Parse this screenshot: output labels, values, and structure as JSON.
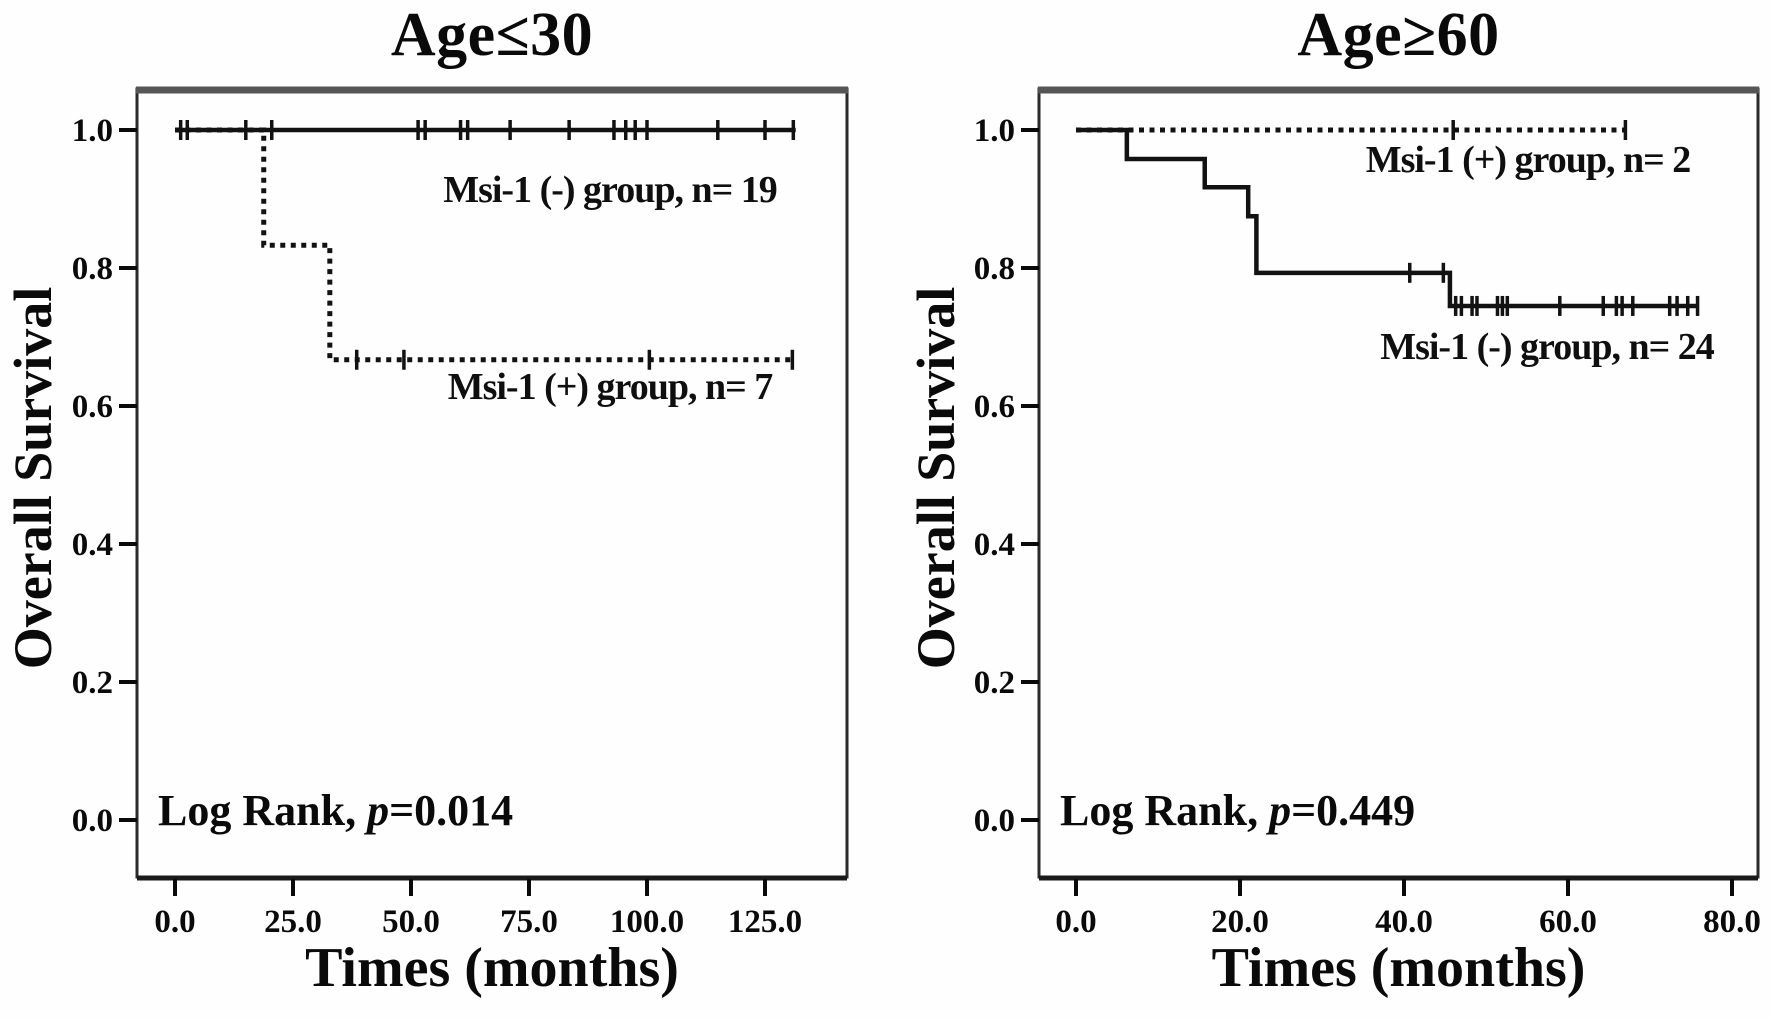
{
  "chart_data": [
    {
      "type": "line",
      "subtype": "kaplan-meier-step",
      "title": "Age≤30",
      "xlabel": "Times (months)",
      "ylabel": "Overall Survival",
      "xlim": [
        -8,
        142
      ],
      "ylim": [
        -0.08,
        1.06
      ],
      "grid": "off",
      "x_ticks": [
        0,
        25,
        50,
        75,
        100,
        125
      ],
      "x_tick_labels": [
        "0.0",
        "25.0",
        "50.0",
        "75.0",
        "100.0",
        "125.0"
      ],
      "y_ticks": [
        1.0,
        0.8,
        0.6,
        0.4,
        0.2,
        0.0
      ],
      "y_tick_labels": [
        "1.0",
        "0.8",
        "0.6",
        "0.4",
        "0.2",
        "0.0"
      ],
      "annotation": {
        "log_rank_prefix": "Log Rank, ",
        "p_symbol": "p",
        "p_suffix": "=0.014"
      },
      "series": [
        {
          "name": "Msi-1 (-) group, n= 19",
          "style": "solid",
          "steps": [
            [
              0,
              1.0
            ],
            [
              131.5,
              1.0
            ]
          ],
          "censors": [
            [
              1.2,
              1.0
            ],
            [
              2.6,
              1.0
            ],
            [
              15,
              1.0
            ],
            [
              20.5,
              1.0
            ],
            [
              51.5,
              1.0
            ],
            [
              53,
              1.0
            ],
            [
              60.5,
              1.0
            ],
            [
              62,
              1.0
            ],
            [
              71,
              1.0
            ],
            [
              83.5,
              1.0
            ],
            [
              93,
              1.0
            ],
            [
              95.5,
              1.0
            ],
            [
              97.5,
              1.0
            ],
            [
              100,
              1.0
            ],
            [
              115,
              1.0
            ],
            [
              125,
              1.0
            ],
            [
              131,
              1.0
            ]
          ]
        },
        {
          "name": "Msi-1 (+) group, n= 7",
          "style": "dotted",
          "steps": [
            [
              0,
              1.0
            ],
            [
              18.8,
              1.0
            ],
            [
              18.8,
              0.833
            ],
            [
              32.8,
              0.833
            ],
            [
              32.8,
              0.667
            ],
            [
              130.8,
              0.667
            ]
          ],
          "censors": [
            [
              38.5,
              0.667
            ],
            [
              48.5,
              0.667
            ],
            [
              100.5,
              0.667
            ],
            [
              130.8,
              0.667
            ]
          ]
        }
      ]
    },
    {
      "type": "line",
      "subtype": "kaplan-meier-step",
      "title": "Age≥60",
      "xlabel": "Times (months)",
      "ylabel": "Overall Survival",
      "xlim": [
        -4.5,
        83
      ],
      "ylim": [
        -0.08,
        1.06
      ],
      "grid": "off",
      "x_ticks": [
        0,
        20,
        40,
        60,
        80
      ],
      "x_tick_labels": [
        "0.0",
        "20.0",
        "40.0",
        "60.0",
        "80.0"
      ],
      "y_ticks": [
        1.0,
        0.8,
        0.6,
        0.4,
        0.2,
        0.0
      ],
      "y_tick_labels": [
        "1.0",
        "0.8",
        "0.6",
        "0.4",
        "0.2",
        "0.0"
      ],
      "annotation": {
        "log_rank_prefix": "Log Rank, ",
        "p_symbol": "p",
        "p_suffix": "=0.449"
      },
      "series": [
        {
          "name": "Msi-1 (+) group, n= 2",
          "style": "dotted",
          "steps": [
            [
              0,
              1.0
            ],
            [
              67.3,
              1.0
            ]
          ],
          "censors": [
            [
              46,
              1.0
            ],
            [
              67,
              1.0
            ]
          ]
        },
        {
          "name": "Msi-1 (-) group, n= 24",
          "style": "solid",
          "steps": [
            [
              0,
              1.0
            ],
            [
              6.2,
              1.0
            ],
            [
              6.2,
              0.958
            ],
            [
              15.7,
              0.958
            ],
            [
              15.7,
              0.917
            ],
            [
              21,
              0.917
            ],
            [
              21,
              0.875
            ],
            [
              22,
              0.875
            ],
            [
              22,
              0.793
            ],
            [
              45.6,
              0.793
            ],
            [
              45.6,
              0.745
            ],
            [
              75.9,
              0.745
            ]
          ],
          "censors": [
            [
              40.7,
              0.793
            ],
            [
              44.8,
              0.793
            ],
            [
              46.3,
              0.745
            ],
            [
              47,
              0.745
            ],
            [
              48.3,
              0.745
            ],
            [
              48.9,
              0.745
            ],
            [
              51.4,
              0.745
            ],
            [
              52,
              0.745
            ],
            [
              52.6,
              0.745
            ],
            [
              59,
              0.745
            ],
            [
              64.3,
              0.745
            ],
            [
              65.9,
              0.745
            ],
            [
              66.6,
              0.745
            ],
            [
              67.9,
              0.745
            ],
            [
              72.4,
              0.745
            ],
            [
              73.3,
              0.745
            ],
            [
              74.6,
              0.745
            ],
            [
              75.8,
              0.745
            ]
          ]
        }
      ]
    }
  ],
  "colors": {
    "line": "#121212",
    "box_border": "#2b2b2b",
    "box_top": "#565656",
    "text": "#0a0a0a"
  }
}
